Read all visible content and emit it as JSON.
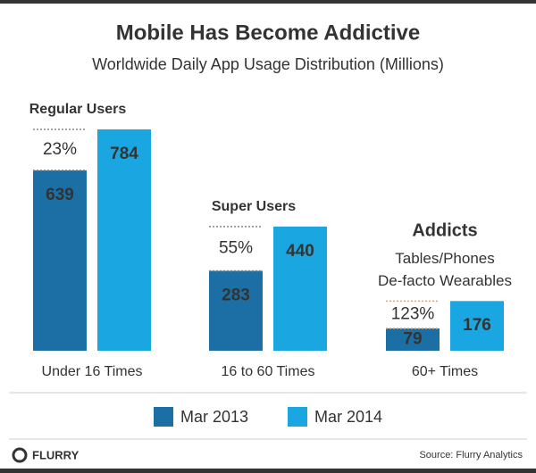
{
  "chart_data": {
    "type": "bar",
    "title": "Mobile Has Become Addictive",
    "subtitle": "Worldwide Daily App Usage Distribution (Millions)",
    "categories": [
      "Under 16 Times",
      "16 to 60 Times",
      "60+ Times"
    ],
    "series": [
      {
        "name": "Mar 2013",
        "color": "#1b6fa5",
        "values": [
          639,
          283,
          79
        ]
      },
      {
        "name": "Mar 2014",
        "color": "#1aa6e0",
        "values": [
          784,
          440,
          176
        ]
      }
    ],
    "group_labels": [
      "Regular Users",
      "Super Users",
      "Addicts"
    ],
    "group_notes": [
      [],
      [],
      [
        "Tables/Phones",
        "De-facto Wearables"
      ]
    ],
    "changes": [
      "23%",
      "55%",
      "123%"
    ],
    "highlight_color": "#f5a05a",
    "brand": "FLURRY",
    "source": "Source: Flurry Analytics"
  }
}
